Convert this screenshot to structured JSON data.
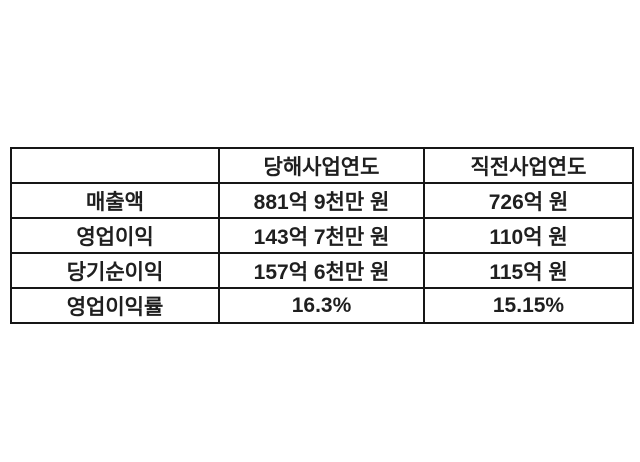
{
  "page": {
    "background": "#ffffff",
    "border_color": "#161616",
    "text_color": "#1f1f1f"
  },
  "chart_data": {
    "type": "table",
    "columns": [
      "",
      "당해사업연도",
      "직전사업연도"
    ],
    "rows": [
      [
        "매출액",
        "881억 9천만 원",
        "726억 원"
      ],
      [
        "영업이익",
        "143억 7천만 원",
        "110억 원"
      ],
      [
        "당기순이익",
        "157억 6천만 원",
        "115억 원"
      ],
      [
        "영업이익률",
        "16.3%",
        "15.15%"
      ]
    ]
  }
}
